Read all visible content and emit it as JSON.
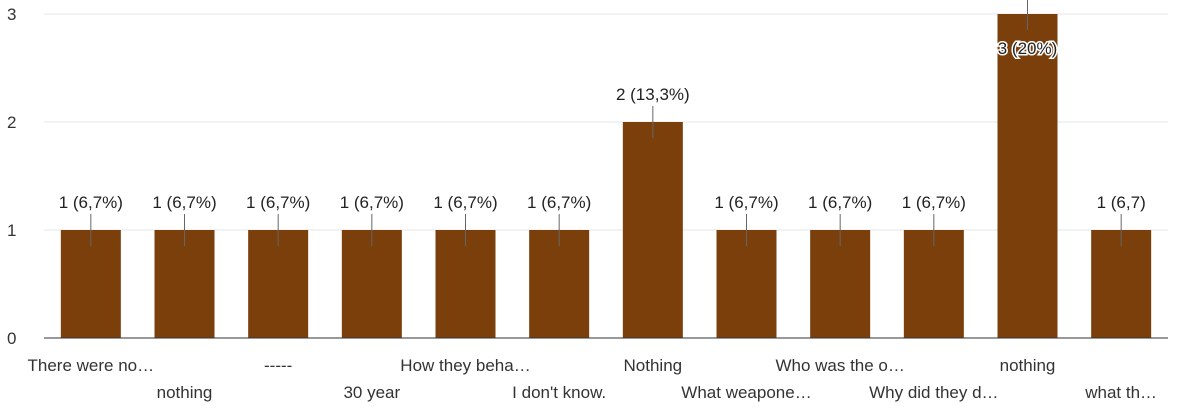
{
  "chart_data": {
    "type": "bar",
    "categories": [
      "There were no…",
      "nothing",
      "-----",
      "30 year",
      "How they beha…",
      "I don't know.",
      "Nothing",
      "What weapone…",
      "Who was the o…",
      "Why did they d…",
      "nothing",
      "what th…"
    ],
    "values": [
      1,
      1,
      1,
      1,
      1,
      1,
      2,
      1,
      1,
      1,
      3,
      1
    ],
    "data_labels": [
      "1 (6,7%)",
      "1 (6,7%)",
      "1 (6,7%)",
      "1 (6,7%)",
      "1 (6,7%)",
      "1 (6,7%)",
      "2 (13,3%)",
      "1 (6,7%)",
      "1 (6,7%)",
      "1 (6,7%)",
      "3 (20%)",
      "1 (6,7)"
    ],
    "yticks": [
      "0",
      "1",
      "2",
      "3"
    ],
    "ylim": [
      0,
      3
    ],
    "bar_color": "#7b3f0c",
    "grid": true,
    "grid_color": "#e6e6e6",
    "axis_color": "#333333"
  }
}
